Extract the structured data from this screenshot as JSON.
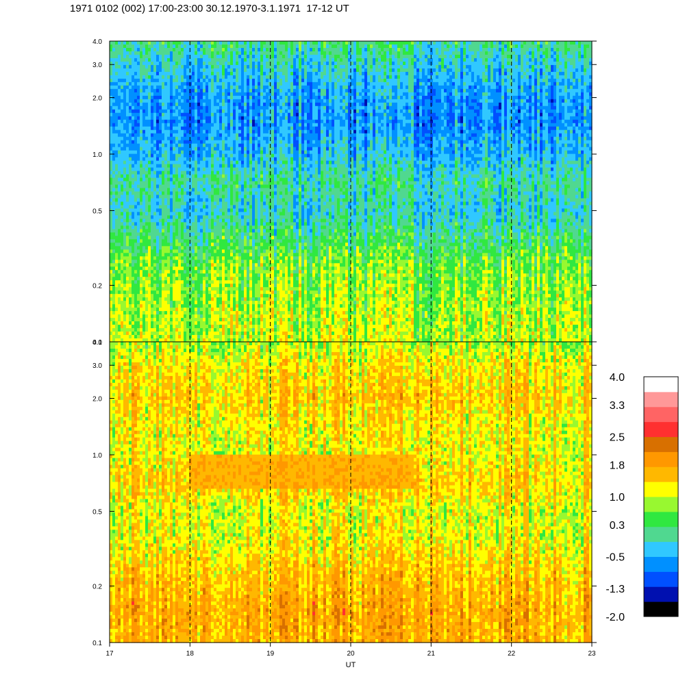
{
  "title": "1971 0102 (002) 17:00-23:00 30.12.1970-3.1.1971  17-12 UT",
  "chart_data": [
    {
      "type": "heatmap",
      "panel": "top",
      "x_range": [
        17,
        23
      ],
      "y_scale": "log",
      "y_range": [
        0.1,
        4.0
      ],
      "y_ticks": [
        "4.0",
        "3.0",
        "2.0",
        "1.0",
        "0.5",
        "0.2",
        "0.1"
      ],
      "y_tick_values": [
        4.0,
        3.0,
        2.0,
        1.0,
        0.5,
        0.2,
        0.1
      ],
      "grid_x": "dashed vertical lines at each hour",
      "profile": [
        {
          "y": 0.1,
          "value": 1.0
        },
        {
          "y": 0.15,
          "value": 0.9
        },
        {
          "y": 0.25,
          "value": 0.7
        },
        {
          "y": 0.35,
          "value": 0.3
        },
        {
          "y": 0.5,
          "value": -0.2
        },
        {
          "y": 0.7,
          "value": 0.1
        },
        {
          "y": 1.0,
          "value": -0.4
        },
        {
          "y": 1.5,
          "value": -0.7
        },
        {
          "y": 2.0,
          "value": -0.6
        },
        {
          "y": 3.0,
          "value": -0.2
        },
        {
          "y": 4.0,
          "value": 0.2
        }
      ]
    },
    {
      "type": "heatmap",
      "panel": "bottom",
      "x_range": [
        17,
        23
      ],
      "y_scale": "log",
      "y_range": [
        0.1,
        4.0
      ],
      "y_ticks": [
        "4.0",
        "3.0",
        "2.0",
        "1.0",
        "0.5",
        "0.2",
        "0.1"
      ],
      "y_tick_values": [
        4.0,
        3.0,
        2.0,
        1.0,
        0.5,
        0.2,
        0.1
      ],
      "x_ticks": [
        "17",
        "18",
        "19",
        "20",
        "21",
        "22",
        "23"
      ],
      "x_tick_values": [
        17,
        18,
        19,
        20,
        21,
        22,
        23
      ],
      "xlabel": "UT",
      "grid_x": "dashed vertical lines at each hour",
      "profile": [
        {
          "y": 0.1,
          "value": 1.7
        },
        {
          "y": 0.15,
          "value": 1.8
        },
        {
          "y": 0.25,
          "value": 1.5
        },
        {
          "y": 0.35,
          "value": 1.2
        },
        {
          "y": 0.5,
          "value": 1.1
        },
        {
          "y": 0.7,
          "value": 1.5
        },
        {
          "y": 1.0,
          "value": 1.2
        },
        {
          "y": 1.5,
          "value": 1.3
        },
        {
          "y": 2.0,
          "value": 1.5
        },
        {
          "y": 3.0,
          "value": 1.3
        },
        {
          "y": 4.0,
          "value": 0.9
        }
      ],
      "feature": {
        "x_range": [
          18,
          20.8
        ],
        "y_range": [
          0.65,
          1.0
        ],
        "value": 1.9
      }
    }
  ],
  "colorbar": {
    "labels": [
      "4.0",
      "3.3",
      "2.5",
      "1.8",
      "1.0",
      "0.3",
      "-0.5",
      "-1.3",
      "-2.0"
    ],
    "levels": [
      {
        "value": -2.0,
        "color": "#000000"
      },
      {
        "value": -1.6,
        "color": "#0010b0"
      },
      {
        "value": -1.3,
        "color": "#0050ff"
      },
      {
        "value": -0.9,
        "color": "#0090ff"
      },
      {
        "value": -0.5,
        "color": "#30c8ff"
      },
      {
        "value": -0.1,
        "color": "#50d890"
      },
      {
        "value": 0.3,
        "color": "#30e840"
      },
      {
        "value": 0.7,
        "color": "#98f830"
      },
      {
        "value": 1.0,
        "color": "#ffff00"
      },
      {
        "value": 1.4,
        "color": "#ffb800"
      },
      {
        "value": 1.8,
        "color": "#ff9800"
      },
      {
        "value": 2.2,
        "color": "#d87000"
      },
      {
        "value": 2.5,
        "color": "#ff3030"
      },
      {
        "value": 2.9,
        "color": "#ff6464"
      },
      {
        "value": 3.3,
        "color": "#ff9898"
      },
      {
        "value": 4.0,
        "color": "#ffffff"
      }
    ]
  }
}
